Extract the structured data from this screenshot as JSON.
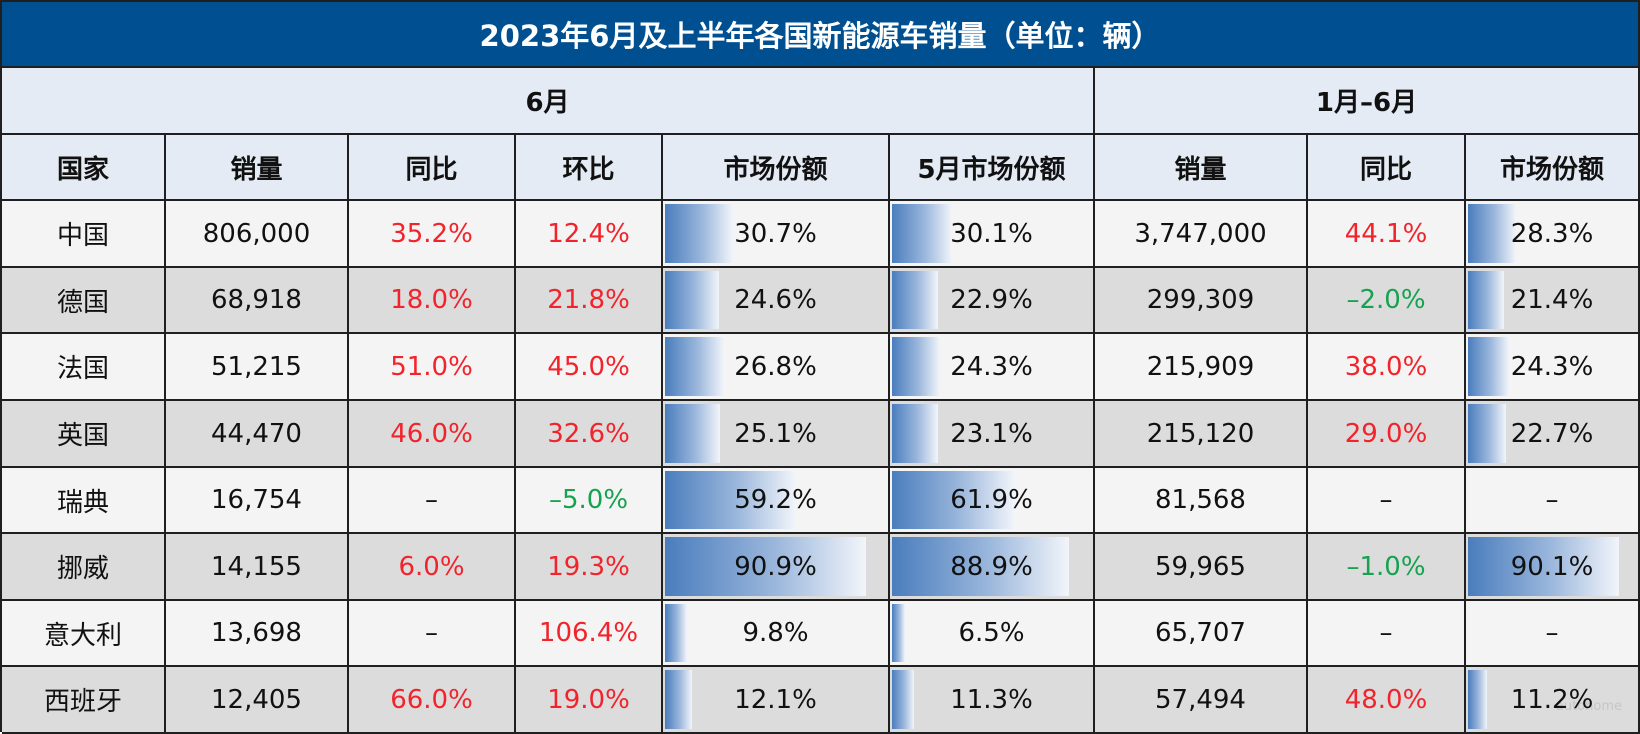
{
  "title": "2023年6月及上半年各国新能源车销量（单位：辆）",
  "group_headers": {
    "june": "6月",
    "h1": "1月–6月"
  },
  "columns": {
    "country": "国家",
    "june_sales": "销量",
    "june_yoy": "同比",
    "june_mom": "环比",
    "june_share": "市场份额",
    "may_share": "5月市场份额",
    "h1_sales": "销量",
    "h1_yoy": "同比",
    "h1_share": "市场份额"
  },
  "rows": [
    {
      "country": "中国",
      "june_sales": "806,000",
      "june_yoy": "35.2%",
      "june_mom": "12.4%",
      "june_share": "30.7%",
      "may_share": "30.1%",
      "h1_sales": "3,747,000",
      "h1_yoy": "44.1%",
      "h1_share": "28.3%"
    },
    {
      "country": "德国",
      "june_sales": "68,918",
      "june_yoy": "18.0%",
      "june_mom": "21.8%",
      "june_share": "24.6%",
      "may_share": "22.9%",
      "h1_sales": "299,309",
      "h1_yoy": "–2.0%",
      "h1_share": "21.4%"
    },
    {
      "country": "法国",
      "june_sales": "51,215",
      "june_yoy": "51.0%",
      "june_mom": "45.0%",
      "june_share": "26.8%",
      "may_share": "24.3%",
      "h1_sales": "215,909",
      "h1_yoy": "38.0%",
      "h1_share": "24.3%"
    },
    {
      "country": "英国",
      "june_sales": "44,470",
      "june_yoy": "46.0%",
      "june_mom": "32.6%",
      "june_share": "25.1%",
      "may_share": "23.1%",
      "h1_sales": "215,120",
      "h1_yoy": "29.0%",
      "h1_share": "22.7%"
    },
    {
      "country": "瑞典",
      "june_sales": "16,754",
      "june_yoy": "–",
      "june_mom": "–5.0%",
      "june_share": "59.2%",
      "may_share": "61.9%",
      "h1_sales": "81,568",
      "h1_yoy": "–",
      "h1_share": "–"
    },
    {
      "country": "挪威",
      "june_sales": "14,155",
      "june_yoy": "6.0%",
      "june_mom": "19.3%",
      "june_share": "90.9%",
      "may_share": "88.9%",
      "h1_sales": "59,965",
      "h1_yoy": "–1.0%",
      "h1_share": "90.1%"
    },
    {
      "country": "意大利",
      "june_sales": "13,698",
      "june_yoy": "–",
      "june_mom": "106.4%",
      "june_share": "9.8%",
      "may_share": "6.5%",
      "h1_sales": "65,707",
      "h1_yoy": "–",
      "h1_share": "–"
    },
    {
      "country": "西班牙",
      "june_sales": "12,405",
      "june_yoy": "66.0%",
      "june_mom": "19.0%",
      "june_share": "12.1%",
      "may_share": "11.3%",
      "h1_sales": "57,494",
      "h1_yoy": "48.0%",
      "h1_share": "11.2%"
    }
  ],
  "colors": {
    "title_bg": "#005091",
    "header_bg": "#e4ebf4",
    "row_light": "#f4f4f4",
    "row_dark": "#dcdcdc",
    "positive": "#f2232b",
    "negative": "#16a34f",
    "bar": "#4a7dbd"
  }
}
